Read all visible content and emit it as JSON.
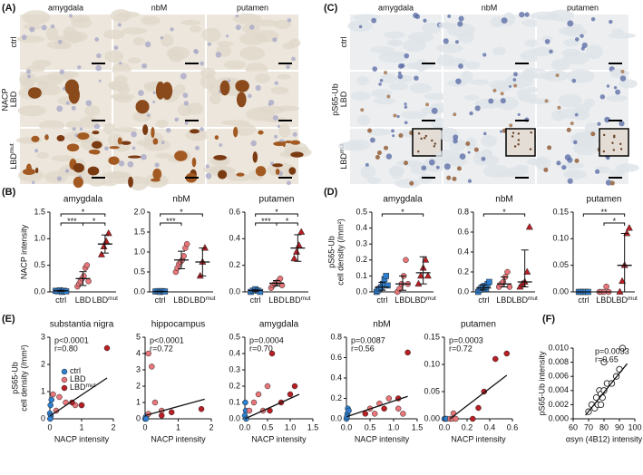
{
  "panels": {
    "A": "(A)",
    "B": "(B)",
    "C": "(C)",
    "D": "(D)",
    "E": "(E)",
    "F": "(F)"
  },
  "images": {
    "A": {
      "stain": "NACP",
      "columns": [
        "amygdala",
        "nbM",
        "putamen"
      ],
      "rows": [
        "ctrl",
        "LBD",
        "LBD"
      ],
      "row_sup": [
        null,
        null,
        "mut"
      ]
    },
    "C": {
      "stain": "pS65-Ub",
      "columns": [
        "amygdala",
        "nbM",
        "putamen"
      ],
      "rows": [
        "ctrl",
        "LBD",
        "LBD"
      ],
      "row_sup": [
        null,
        null,
        "mut"
      ]
    }
  },
  "chart_data": [
    {
      "type": "dot",
      "title": "amygdala",
      "ylabel": [
        "NACP intensity"
      ],
      "categories": [
        "ctrl",
        "LBD",
        "LBD"
      ],
      "category_sup": [
        null,
        null,
        "mut"
      ],
      "colors": [
        "#2f7fd0",
        "#e8767a",
        "#b81f24"
      ],
      "markers": [
        "square",
        "circle",
        "triangle"
      ],
      "values": [
        [
          0.02,
          0.01,
          0.03,
          0.0,
          0.02,
          0.01
        ],
        [
          0.1,
          0.15,
          0.2,
          0.25,
          0.3,
          0.45,
          0.5,
          0.2
        ],
        [
          0.7,
          0.85,
          0.95,
          1.1
        ]
      ],
      "center": [
        0.02,
        0.25,
        0.9
      ],
      "lower": [
        0.01,
        0.12,
        0.73
      ],
      "upper": [
        0.03,
        0.38,
        1.07
      ],
      "ylim": [
        0,
        1.5
      ],
      "yticks": [
        {
          "value": 0,
          "label": "0.0"
        },
        0.5,
        {
          "value": 1,
          "label": "1.0"
        },
        1.5
      ],
      "significance": [
        {
          "from": 0,
          "to": 2,
          "label": "*"
        },
        {
          "from": 0,
          "to": 1,
          "label": "***"
        },
        {
          "from": 1,
          "to": 2,
          "label": "*"
        }
      ]
    },
    {
      "type": "dot",
      "title": "nbM",
      "categories": [
        "ctrl",
        "LBD",
        "LBD"
      ],
      "category_sup": [
        null,
        null,
        "mut"
      ],
      "colors": [
        "#2f7fd0",
        "#e8767a",
        "#b81f24"
      ],
      "markers": [
        "square",
        "circle",
        "triangle"
      ],
      "values": [
        [
          0.01,
          0.02,
          0.0,
          0.02,
          0.01
        ],
        [
          0.5,
          0.6,
          0.7,
          0.75,
          0.8,
          0.9,
          1.1,
          1.2
        ],
        [
          0.4,
          0.75,
          1.1
        ]
      ],
      "center": [
        0.01,
        0.8,
        0.75
      ],
      "lower": [
        0.0,
        0.58,
        0.4
      ],
      "upper": [
        0.02,
        1.02,
        1.1
      ],
      "ylim": [
        0,
        2
      ],
      "yticks": [
        {
          "value": 0,
          "label": "0.0"
        },
        0.5,
        {
          "value": 1,
          "label": "1.0"
        },
        1.5,
        {
          "value": 2,
          "label": "2.0"
        }
      ],
      "significance": [
        {
          "from": 0,
          "to": 2,
          "label": "*"
        },
        {
          "from": 0,
          "to": 1,
          "label": "***"
        }
      ]
    },
    {
      "type": "dot",
      "title": "putamen",
      "categories": [
        "ctrl",
        "LBD",
        "LBD"
      ],
      "category_sup": [
        null,
        null,
        "mut"
      ],
      "colors": [
        "#2f7fd0",
        "#e8767a",
        "#b81f24"
      ],
      "markers": [
        "square",
        "circle",
        "triangle"
      ],
      "values": [
        [
          0.0,
          0.01,
          0.02,
          0.01,
          0.0
        ],
        [
          0.03,
          0.05,
          0.06,
          0.07,
          0.08,
          0.1,
          0.05
        ],
        [
          0.25,
          0.3,
          0.35,
          0.45
        ]
      ],
      "center": [
        0.01,
        0.065,
        0.33
      ],
      "lower": [
        0.002,
        0.045,
        0.23
      ],
      "upper": [
        0.018,
        0.085,
        0.43
      ],
      "ylim": [
        0,
        0.6
      ],
      "yticks": [
        {
          "value": 0,
          "label": "0.0"
        },
        0.2,
        0.4,
        0.6
      ],
      "significance": [
        {
          "from": 0,
          "to": 2,
          "label": "*"
        },
        {
          "from": 0,
          "to": 1,
          "label": "***"
        },
        {
          "from": 1,
          "to": 2,
          "label": "*"
        }
      ]
    },
    {
      "type": "dot",
      "title": "amygdala",
      "ylabel": [
        "pS65-Ub",
        "cell density (/mm²)"
      ],
      "categories": [
        "ctrl",
        "LBD",
        "LBD"
      ],
      "category_sup": [
        null,
        null,
        "mut"
      ],
      "colors": [
        "#2f7fd0",
        "#e8767a",
        "#b81f24"
      ],
      "markers": [
        "square",
        "circle",
        "triangle"
      ],
      "values": [
        [
          0.0,
          0.01,
          0.02,
          0.03,
          0.05,
          0.08,
          0.1,
          0.04
        ],
        [
          0.0,
          0.02,
          0.05,
          0.1,
          0.2,
          0.05
        ],
        [
          0.05,
          0.1,
          0.15,
          0.2,
          0.1
        ]
      ],
      "center": [
        0.03,
        0.05,
        0.12
      ],
      "lower": [
        0.01,
        0.01,
        0.05
      ],
      "upper": [
        0.06,
        0.1,
        0.22
      ],
      "ylim": [
        0,
        0.5
      ],
      "yticks": [
        {
          "value": 0,
          "label": "0.0"
        },
        0.1,
        0.2,
        0.3,
        0.4,
        0.5
      ],
      "significance": [
        {
          "from": 0,
          "to": 2,
          "label": "*"
        }
      ]
    },
    {
      "type": "dot",
      "title": "nbM",
      "categories": [
        "ctrl",
        "LBD",
        "LBD"
      ],
      "category_sup": [
        null,
        null,
        "mut"
      ],
      "colors": [
        "#2f7fd0",
        "#e8767a",
        "#b81f24"
      ],
      "markers": [
        "square",
        "circle",
        "triangle"
      ],
      "values": [
        [
          0.0,
          0.02,
          0.04,
          0.05,
          0.06,
          0.03,
          0.08,
          0.1
        ],
        [
          0.05,
          0.08,
          0.1,
          0.15,
          0.2,
          0.05
        ],
        [
          0.05,
          0.08,
          0.1,
          0.2,
          0.65
        ]
      ],
      "center": [
        0.04,
        0.08,
        0.1
      ],
      "lower": [
        0.02,
        0.05,
        0.05
      ],
      "upper": [
        0.07,
        0.15,
        0.42
      ],
      "ylim": [
        0,
        0.8
      ],
      "yticks": [
        {
          "value": 0,
          "label": "0.0"
        },
        0.2,
        0.4,
        0.6,
        0.8
      ],
      "significance": [
        {
          "from": 0,
          "to": 2,
          "label": "*"
        }
      ]
    },
    {
      "type": "dot",
      "title": "putamen",
      "categories": [
        "ctrl",
        "LBD",
        "LBD"
      ],
      "category_sup": [
        null,
        null,
        "mut"
      ],
      "colors": [
        "#2f7fd0",
        "#e8767a",
        "#b81f24"
      ],
      "markers": [
        "square",
        "circle",
        "triangle"
      ],
      "values": [
        [
          0,
          0,
          0,
          0,
          0
        ],
        [
          0,
          0,
          0,
          0.01,
          0
        ],
        [
          0.0,
          0.02,
          0.05,
          0.11,
          0.12
        ]
      ],
      "center": [
        0,
        0,
        0.05
      ],
      "lower": [
        0,
        0,
        0.0
      ],
      "upper": [
        0,
        0,
        0.11
      ],
      "ylim": [
        0,
        0.15
      ],
      "yticks": [
        {
          "value": 0,
          "label": "0.00"
        },
        0.05,
        {
          "value": 0.1,
          "label": "0.10"
        },
        0.15
      ],
      "significance": [
        {
          "from": 0,
          "to": 2,
          "label": "**"
        },
        {
          "from": 1,
          "to": 2,
          "label": "*"
        }
      ]
    },
    {
      "type": "scatter",
      "title": "substantia nigra",
      "ylabel": [
        "pS65-Ub",
        "cell density (/mm²)"
      ],
      "xlabel": "NACP intensity",
      "series": [
        {
          "name": "ctrl",
          "color": "#2f7fd0",
          "x": [
            0.0,
            0.02,
            0.05,
            0.03,
            0.01
          ],
          "y": [
            0.2,
            0.5,
            0.7,
            0.1,
            0.0
          ]
        },
        {
          "name": "LBD",
          "color": "#e8767a",
          "x": [
            0.3,
            0.5,
            0.8,
            1.0,
            0.2,
            0.1
          ],
          "y": [
            0.8,
            0.6,
            0.5,
            0.5,
            0.3,
            0.9
          ]
        },
        {
          "name": "LBD",
          "name_sup": "mut",
          "color": "#b81f24",
          "x": [
            0.7,
            1.0,
            1.8
          ],
          "y": [
            0.6,
            0.5,
            2.6
          ]
        }
      ],
      "fit": {
        "x": [
          0,
          1.8
        ],
        "y": [
          0.1,
          1.5
        ]
      },
      "annotations": [
        "p<0.0001",
        "r=0.80"
      ],
      "xlim": [
        0,
        2
      ],
      "xticks": [
        0,
        1,
        2
      ],
      "ylim": [
        0,
        3
      ],
      "yticks": [
        0,
        1,
        2,
        3
      ]
    },
    {
      "type": "scatter",
      "title": "hippocampus",
      "xlabel": "NACP intensity",
      "series": [
        {
          "color": "#2f7fd0",
          "x": [
            0.02,
            0.05,
            0.0,
            0.03
          ],
          "y": [
            0.1,
            0.2,
            0.0,
            0.0
          ]
        },
        {
          "color": "#e8767a",
          "x": [
            0.1,
            0.2,
            0.3,
            0.5,
            0.1
          ],
          "y": [
            4.0,
            3.2,
            1.0,
            0.5,
            0.3
          ]
        },
        {
          "color": "#b81f24",
          "x": [
            0.5,
            0.8,
            1.7
          ],
          "y": [
            0.2,
            0.4,
            0.6
          ]
        }
      ],
      "fit": {
        "x": [
          0,
          1.8
        ],
        "y": [
          0.2,
          1.2
        ]
      },
      "annotations": [
        "p<0.0001",
        "r=0.72"
      ],
      "xlim": [
        0,
        2
      ],
      "xticks": [
        0,
        1,
        2
      ],
      "ylim": [
        0,
        5
      ],
      "yticks": [
        0,
        1,
        2,
        3,
        4,
        5
      ]
    },
    {
      "type": "scatter",
      "title": "amygdala",
      "xlabel": "NACP intensity",
      "series": [
        {
          "color": "#2f7fd0",
          "x": [
            0,
            0.02,
            0.03,
            0.01
          ],
          "y": [
            0.02,
            0.05,
            0.0,
            0.1
          ]
        },
        {
          "color": "#e8767a",
          "x": [
            0.1,
            0.2,
            0.3,
            0.5,
            0.4
          ],
          "y": [
            0.05,
            0.1,
            0.15,
            0.2,
            0.05
          ]
        },
        {
          "color": "#b81f24",
          "x": [
            0.6,
            0.8,
            1.0,
            1.1,
            0.55
          ],
          "y": [
            0.4,
            0.1,
            0.15,
            0.2,
            0.05
          ]
        }
      ],
      "fit": {
        "x": [
          0,
          1.2
        ],
        "y": [
          0.0,
          0.15
        ]
      },
      "annotations": [
        "p=0.0004",
        "r=0.70"
      ],
      "xlim": [
        0,
        1.5
      ],
      "xticks": [
        {
          "value": 0,
          "label": "0.0"
        },
        0.5,
        {
          "value": 1,
          "label": "1.0"
        },
        1.5
      ],
      "ylim": [
        0,
        0.5
      ],
      "yticks": [
        {
          "value": 0,
          "label": "0.0"
        },
        0.1,
        0.2,
        0.3,
        0.4,
        0.5
      ]
    },
    {
      "type": "scatter",
      "title": "nbM",
      "xlabel": "NACP intensity",
      "series": [
        {
          "color": "#2f7fd0",
          "x": [
            0,
            0.02,
            0.03,
            0.01,
            0.05
          ],
          "y": [
            0.0,
            0.05,
            0.1,
            0.02,
            0.08
          ]
        },
        {
          "color": "#e8767a",
          "x": [
            0.5,
            0.6,
            0.7,
            0.9,
            1.1,
            1.2
          ],
          "y": [
            0.1,
            0.05,
            0.15,
            0.2,
            0.1,
            0.05
          ]
        },
        {
          "color": "#b81f24",
          "x": [
            0.4,
            0.8,
            1.1,
            1.3
          ],
          "y": [
            0.05,
            0.1,
            0.2,
            0.65
          ]
        }
      ],
      "fit": {
        "x": [
          0,
          1.3
        ],
        "y": [
          0.02,
          0.22
        ]
      },
      "annotations": [
        "p=0.0087",
        "r=0.56"
      ],
      "xlim": [
        0,
        1.5
      ],
      "xticks": [
        {
          "value": 0,
          "label": "0.0"
        },
        0.5,
        {
          "value": 1,
          "label": "1.0"
        },
        1.5
      ],
      "ylim": [
        0,
        0.8
      ],
      "yticks": [
        {
          "value": 0,
          "label": "0.0"
        },
        0.2,
        0.4,
        0.6,
        0.8
      ]
    },
    {
      "type": "scatter",
      "title": "putamen",
      "xlabel": "NACP intensity",
      "series": [
        {
          "color": "#2f7fd0",
          "x": [
            0,
            0.01,
            0.02
          ],
          "y": [
            0,
            0,
            0
          ]
        },
        {
          "color": "#e8767a",
          "x": [
            0.05,
            0.07,
            0.08,
            0.1
          ],
          "y": [
            0,
            0,
            0.01,
            0
          ]
        },
        {
          "color": "#b81f24",
          "x": [
            0.25,
            0.3,
            0.35,
            0.45,
            0.55
          ],
          "y": [
            0.0,
            0.02,
            0.05,
            0.11,
            0.12
          ]
        }
      ],
      "fit": {
        "x": [
          0.05,
          0.55
        ],
        "y": [
          0.0,
          0.08
        ]
      },
      "annotations": [
        "p=0.0003",
        "r=0.72"
      ],
      "xlim": [
        0,
        0.6
      ],
      "xticks": [
        {
          "value": 0,
          "label": "0.0"
        },
        0.2,
        0.4,
        0.6
      ],
      "ylim": [
        0,
        0.15
      ],
      "yticks": [
        {
          "value": 0,
          "label": "0.00"
        },
        0.05,
        {
          "value": 0.1,
          "label": "0.10"
        },
        0.15
      ]
    },
    {
      "type": "scatter",
      "ylabel": [
        "pS65-Ub intensity"
      ],
      "xlabel": "αsyn (4B12) intensity",
      "open": true,
      "series": [
        {
          "color": "#222222",
          "x": [
            70,
            72,
            74,
            75,
            76,
            77,
            78,
            78,
            79,
            80,
            80,
            82,
            85,
            88,
            90,
            92
          ],
          "y": [
            0.001,
            0.002,
            0.0015,
            0.003,
            0.002,
            0.004,
            0.002,
            0.0035,
            0.003,
            0.004,
            0.008,
            0.005,
            0.005,
            0.006,
            0.007,
            0.01
          ]
        }
      ],
      "fit": {
        "x": [
          68,
          95
        ],
        "y": [
          0.0005,
          0.0078
        ]
      },
      "annotations": [
        "p=0.0033",
        "r=0.65"
      ],
      "xlim": [
        60,
        100
      ],
      "xticks": [
        60,
        70,
        80,
        90,
        100
      ],
      "ylim": [
        0,
        0.01
      ],
      "yticks": [
        {
          "value": 0,
          "label": "0.000"
        },
        0.002,
        0.004,
        0.006,
        0.008,
        {
          "value": 0.01,
          "label": "0.010"
        }
      ]
    }
  ]
}
